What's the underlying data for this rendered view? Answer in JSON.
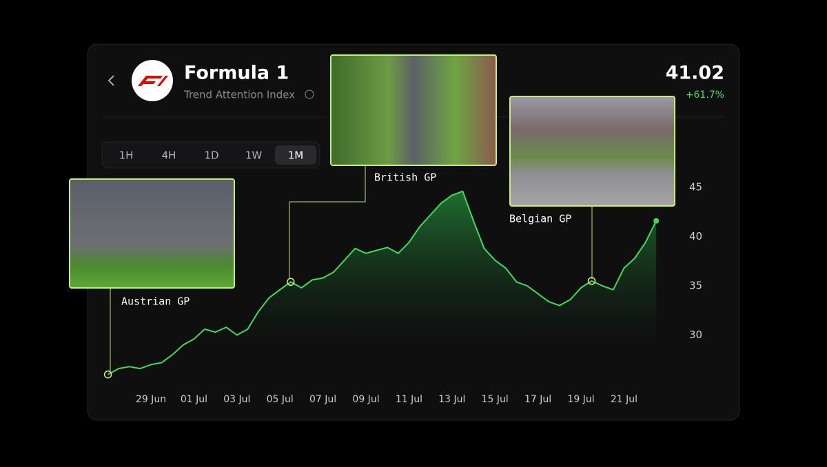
{
  "header": {
    "title": "Formula 1",
    "subtitle": "Trend Attention Index",
    "value": "41.02",
    "change": "+61.7%"
  },
  "timeframes": [
    "1H",
    "4H",
    "1D",
    "1W",
    "1M"
  ],
  "chart_data": {
    "type": "line",
    "color": "#3fdc5a",
    "categories": [
      null,
      null,
      null,
      null,
      "29 Jun",
      null,
      null,
      null,
      "01 Jul",
      null,
      null,
      null,
      "03 Jul",
      null,
      null,
      null,
      "05 Jul",
      null,
      null,
      null,
      "07 Jul",
      null,
      null,
      null,
      "09 Jul",
      null,
      null,
      null,
      "11 Jul",
      null,
      null,
      null,
      "13 Jul",
      null,
      null,
      null,
      "15 Jul",
      null,
      null,
      null,
      "17 Jul",
      null,
      null,
      null,
      "19 Jul",
      null,
      null,
      null,
      "21 Jul",
      null,
      null,
      null
    ],
    "values": [
      26,
      26.6,
      26.8,
      26.6,
      27,
      27.2,
      28,
      29,
      29.6,
      30.6,
      30.3,
      30.8,
      30,
      30.6,
      32.4,
      33.8,
      34.6,
      35.4,
      34.8,
      35.6,
      35.8,
      36.4,
      37.6,
      38.8,
      38.3,
      38.6,
      38.9,
      38.3,
      39.4,
      41,
      42.2,
      43.4,
      44.2,
      44.6,
      41.6,
      38.8,
      37.6,
      36.8,
      35.4,
      35,
      34.2,
      33.4,
      33,
      33.6,
      34.8,
      35.5,
      35,
      34.6,
      36.8,
      37.8,
      39.4,
      41.6
    ],
    "ylim": [
      25,
      50
    ],
    "yticks": [
      30,
      35,
      40,
      45
    ],
    "grid": false,
    "annotations": [
      "Austrian GP",
      "British GP",
      "Belgian GP"
    ]
  }
}
